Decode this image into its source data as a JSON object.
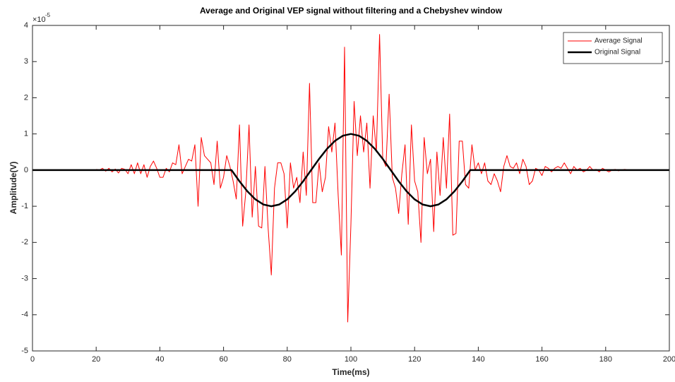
{
  "chart_data": {
    "type": "line",
    "title": "Average and Original VEP signal without filtering and a Chebyshev window",
    "x_label": "Time(ms)",
    "y_label": "Amplitude(V)",
    "y_multiplier": {
      "base": "×10",
      "exponent": "-5"
    },
    "xlim": [
      0,
      200
    ],
    "xticks": [
      0,
      20,
      40,
      60,
      80,
      100,
      120,
      140,
      160,
      180,
      200
    ],
    "ylim": [
      -5,
      4
    ],
    "yticks": [
      -5,
      -4,
      -3,
      -2,
      -1,
      0,
      1,
      2,
      3,
      4
    ],
    "legend": "northeast",
    "series": [
      {
        "name": "Average Signal",
        "color": "#ff0000",
        "width": 1,
        "x": [
          20,
          21,
          22,
          23,
          24,
          25,
          26,
          27,
          28,
          29,
          30,
          31,
          32,
          33,
          34,
          35,
          36,
          37,
          38,
          39,
          40,
          41,
          42,
          43,
          44,
          45,
          46,
          47,
          48,
          49,
          50,
          51,
          52,
          53,
          54,
          55,
          56,
          57,
          58,
          59,
          60,
          61,
          62,
          63,
          64,
          65,
          66,
          67,
          68,
          69,
          70,
          71,
          72,
          73,
          74,
          75,
          76,
          77,
          78,
          79,
          80,
          81,
          82,
          83,
          84,
          85,
          86,
          87,
          88,
          89,
          90,
          91,
          92,
          93,
          94,
          95,
          96,
          97,
          98,
          99,
          100,
          101,
          102,
          103,
          104,
          105,
          106,
          107,
          108,
          109,
          110,
          111,
          112,
          113,
          114,
          115,
          116,
          117,
          118,
          119,
          120,
          121,
          122,
          123,
          124,
          125,
          126,
          127,
          128,
          129,
          130,
          131,
          132,
          133,
          134,
          135,
          136,
          137,
          138,
          139,
          140,
          141,
          142,
          143,
          144,
          145,
          146,
          147,
          148,
          149,
          150,
          151,
          152,
          153,
          154,
          155,
          156,
          157,
          158,
          159,
          160,
          161,
          162,
          163,
          164,
          165,
          166,
          167,
          168,
          169,
          170,
          171,
          172,
          173,
          174,
          175,
          176,
          177,
          178,
          179,
          180,
          181,
          182,
          183,
          184,
          185,
          186,
          187
        ],
        "values": [
          0.02,
          0,
          0.05,
          -0.03,
          0.05,
          -0.05,
          0.03,
          -0.08,
          0.05,
          0.02,
          -0.1,
          0.15,
          -0.1,
          0.2,
          -0.1,
          0.15,
          -0.2,
          0.1,
          0.25,
          0.05,
          -0.2,
          -0.2,
          0.05,
          -0.05,
          0.2,
          0.15,
          0.7,
          -0.1,
          0.1,
          0.3,
          0.25,
          0.7,
          -1.0,
          0.9,
          0.4,
          0.3,
          0.2,
          -0.4,
          0.8,
          -0.5,
          -0.2,
          0.4,
          0.1,
          -0.3,
          -0.8,
          1.25,
          -1.55,
          -0.6,
          1.25,
          -1.3,
          0.1,
          -1.55,
          -1.6,
          0.1,
          -1.6,
          -2.9,
          -0.5,
          0.2,
          0.2,
          -0.1,
          -1.6,
          0.2,
          -0.5,
          -0.2,
          -0.9,
          0.5,
          -0.7,
          2.4,
          -0.9,
          -0.9,
          0.2,
          -0.6,
          -0.2,
          1.2,
          0.5,
          1.3,
          -0.7,
          -2.35,
          3.4,
          -4.2,
          -1.5,
          1.9,
          0.4,
          1.5,
          0.5,
          1.3,
          -0.5,
          1.5,
          0.5,
          3.75,
          0.3,
          0.1,
          2.1,
          -0.2,
          -0.5,
          -1.2,
          -0.1,
          0.7,
          -1.5,
          1.25,
          -0.3,
          -0.6,
          -2.0,
          0.9,
          -0.1,
          0.3,
          -1.7,
          0.5,
          -0.7,
          0.9,
          -0.5,
          1.55,
          -1.8,
          -1.75,
          0.8,
          0.8,
          -0.4,
          -0.5,
          0.7,
          0,
          0.2,
          -0.1,
          0.2,
          -0.3,
          -0.4,
          -0.1,
          -0.3,
          -0.6,
          0.1,
          0.4,
          0.1,
          0.05,
          0.2,
          -0.1,
          0.3,
          0.1,
          -0.4,
          -0.3,
          0.05,
          0,
          -0.15,
          0.1,
          0.05,
          -0.05,
          0.05,
          0.1,
          0.05,
          0.2,
          0.05,
          -0.1,
          0.1,
          0,
          0.05,
          -0.05,
          0,
          0.1,
          0,
          0.02,
          -0.05,
          0.05,
          0,
          -0.05,
          0,
          0.02,
          -0.02,
          0,
          0.02,
          0
        ]
      },
      {
        "name": "Original Signal",
        "color": "#000000",
        "width": 2.5,
        "x": [
          0,
          62.5,
          65,
          67.5,
          70,
          72.5,
          75,
          77.5,
          80,
          82.5,
          85,
          87.5,
          90,
          92.5,
          95,
          97.5,
          100,
          102.5,
          105,
          107.5,
          110,
          112.5,
          115,
          117.5,
          120,
          122.5,
          125,
          127.5,
          130,
          132.5,
          135,
          137.5,
          200
        ],
        "values": [
          0,
          0,
          -0.309,
          -0.588,
          -0.809,
          -0.951,
          -1,
          -0.951,
          -0.809,
          -0.588,
          -0.309,
          0,
          0.309,
          0.588,
          0.809,
          0.951,
          1,
          0.951,
          0.809,
          0.588,
          0.309,
          0,
          -0.309,
          -0.588,
          -0.809,
          -0.951,
          -1,
          -0.951,
          -0.809,
          -0.588,
          -0.309,
          0,
          0
        ]
      }
    ]
  }
}
